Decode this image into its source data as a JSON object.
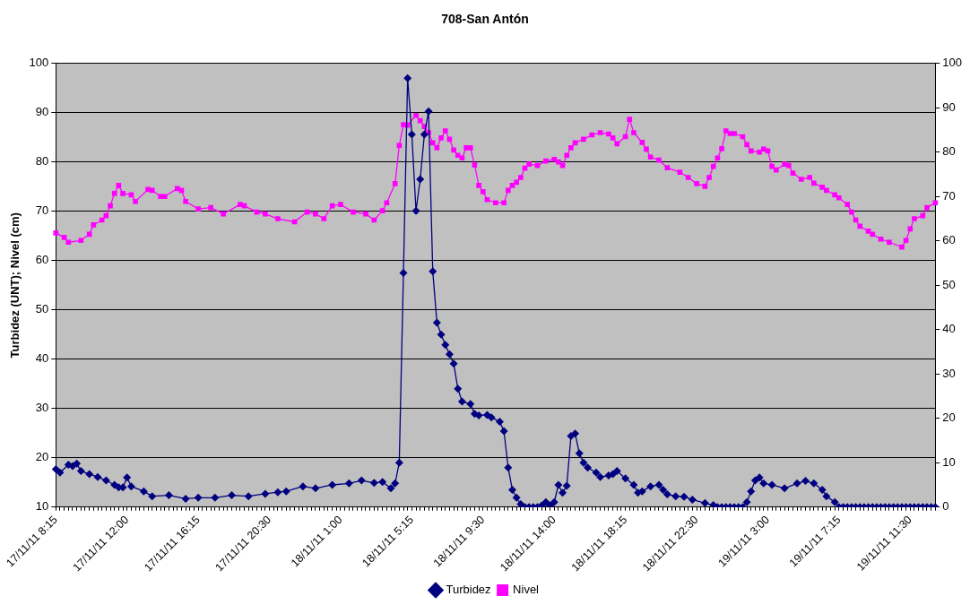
{
  "chart_data": {
    "type": "line",
    "title": "708-San Antón",
    "ylabel": "Turbidez (UNT); Nivel (cm)",
    "categories": [
      "17/11/11 8:15",
      null,
      null,
      null,
      null,
      null,
      null,
      null,
      null,
      null,
      null,
      null,
      null,
      null,
      null,
      null,
      null,
      "17/11/11 12:00",
      null,
      null,
      null,
      null,
      null,
      null,
      null,
      null,
      null,
      null,
      null,
      null,
      null,
      null,
      null,
      null,
      "17/11/11 16:15",
      null,
      null,
      null,
      null,
      null,
      null,
      null,
      null,
      null,
      null,
      null,
      null,
      null,
      null,
      null,
      null,
      "17/11/11 20:30",
      null,
      null,
      null,
      null,
      null,
      null,
      null,
      null,
      null,
      null,
      null,
      null,
      null,
      null,
      null,
      null,
      "18/11/11 1:00",
      null,
      null,
      null,
      null,
      null,
      null,
      null,
      null,
      null,
      null,
      null,
      null,
      null,
      null,
      null,
      null,
      "18/11/11 5:15",
      null,
      null,
      null,
      null,
      null,
      null,
      null,
      null,
      null,
      null,
      null,
      null,
      null,
      null,
      null,
      null,
      "18/11/11 9:30",
      null,
      null,
      null,
      null,
      null,
      null,
      null,
      null,
      null,
      null,
      null,
      null,
      null,
      null,
      null,
      null,
      "18/11/11 14:00",
      null,
      null,
      null,
      null,
      null,
      null,
      null,
      null,
      null,
      null,
      null,
      null,
      null,
      null,
      null,
      null,
      "18/11/11 18:15",
      null,
      null,
      null,
      null,
      null,
      null,
      null,
      null,
      null,
      null,
      null,
      null,
      null,
      null,
      null,
      null,
      "18/11/11 22:30",
      null,
      null,
      null,
      null,
      null,
      null,
      null,
      null,
      null,
      null,
      null,
      null,
      null,
      null,
      null,
      null,
      "19/11/11 3:00",
      null,
      null,
      null,
      null,
      null,
      null,
      null,
      null,
      null,
      null,
      null,
      null,
      null,
      null,
      null,
      null,
      "19/11/11 7:15",
      null,
      null,
      null,
      null,
      null,
      null,
      null,
      null,
      null,
      null,
      null,
      null,
      null,
      null,
      null,
      null,
      "19/11/11 11:30",
      null,
      null,
      null,
      null,
      null,
      null
    ],
    "ylim": [
      10,
      100
    ],
    "yticks": [
      10,
      20,
      30,
      40,
      50,
      60,
      70,
      80,
      90,
      100
    ],
    "y2lim": [
      0,
      100
    ],
    "y2ticks": [
      0,
      10,
      20,
      30,
      40,
      50,
      60,
      70,
      80,
      90,
      100
    ],
    "grid": "y",
    "legend": "bottom",
    "line_style": "solid",
    "series": [
      {
        "name": "Turbidez",
        "color": "#000080",
        "marker": "diamond",
        "values": [
          17.7,
          17.0,
          null,
          18.6,
          18.3,
          18.8,
          17.3,
          null,
          16.7,
          null,
          16.1,
          null,
          15.4,
          null,
          14.5,
          14.0,
          14.0,
          16.0,
          14.2,
          null,
          null,
          13.2,
          null,
          12.2,
          null,
          null,
          null,
          12.4,
          null,
          null,
          null,
          11.7,
          null,
          null,
          11.9,
          null,
          null,
          null,
          11.9,
          null,
          null,
          null,
          12.4,
          null,
          null,
          null,
          12.2,
          null,
          null,
          null,
          12.7,
          null,
          null,
          13.0,
          null,
          13.2,
          null,
          null,
          null,
          14.2,
          null,
          null,
          13.8,
          null,
          null,
          null,
          14.5,
          null,
          null,
          null,
          14.8,
          null,
          null,
          15.4,
          null,
          null,
          14.9,
          null,
          15.1,
          null,
          13.8,
          14.8,
          19.0,
          57.5,
          97.0,
          85.6,
          70.1,
          76.5,
          85.6,
          90.3,
          57.8,
          47.4,
          45.0,
          42.9,
          41.0,
          39.1,
          34.0,
          31.4,
          null,
          30.9,
          28.9,
          28.6,
          null,
          28.7,
          28.2,
          null,
          27.3,
          25.4,
          18.0,
          13.5,
          11.9,
          10.6,
          10,
          10,
          10,
          10,
          10.3,
          11.0,
          10.3,
          11.0,
          14.5,
          12.9,
          14.3,
          24.4,
          24.9,
          20.9,
          19.0,
          18.0,
          null,
          17.0,
          16.1,
          null,
          16.4,
          16.7,
          17.3,
          null,
          15.8,
          null,
          14.5,
          12.9,
          13.2,
          null,
          14.2,
          null,
          14.5,
          13.5,
          12.6,
          null,
          12.2,
          null,
          12.1,
          null,
          11.5,
          null,
          null,
          10.8,
          null,
          10.4,
          10,
          10,
          10,
          10,
          10,
          10,
          10,
          11.0,
          13.2,
          15.4,
          16.0,
          14.8,
          null,
          14.5,
          null,
          null,
          13.8,
          null,
          null,
          14.8,
          null,
          15.3,
          null,
          14.8,
          null,
          13.5,
          12.2,
          null,
          11.0,
          10,
          10,
          10,
          10,
          10,
          10,
          10,
          10,
          10,
          10,
          10,
          10,
          10,
          10,
          10,
          10,
          10,
          10,
          10,
          10,
          10,
          10,
          10,
          10
        ]
      },
      {
        "name": "Nivel",
        "color": "#ff00ff",
        "marker": "square",
        "axis": "y2",
        "values": [
          61.8,
          null,
          60.8,
          59.7,
          null,
          null,
          60.1,
          null,
          61.5,
          63.6,
          null,
          64.7,
          65.7,
          67.9,
          70.7,
          72.5,
          70.7,
          null,
          70.4,
          68.9,
          null,
          null,
          71.6,
          71.4,
          null,
          70.0,
          70.0,
          null,
          null,
          71.8,
          71.4,
          68.9,
          null,
          null,
          67.2,
          null,
          null,
          67.5,
          null,
          null,
          66.1,
          null,
          null,
          null,
          68.2,
          67.9,
          null,
          null,
          66.5,
          null,
          66.1,
          null,
          null,
          65.0,
          null,
          null,
          null,
          64.3,
          null,
          null,
          66.5,
          null,
          66.1,
          null,
          65.0,
          null,
          67.9,
          null,
          68.2,
          null,
          null,
          66.5,
          null,
          null,
          66.1,
          null,
          64.7,
          null,
          66.8,
          68.6,
          null,
          72.9,
          81.5,
          86.2,
          86.1,
          null,
          88.3,
          87.1,
          85.8,
          84.4,
          82.1,
          81.0,
          83.2,
          84.8,
          82.9,
          80.5,
          79.3,
          78.7,
          81.0,
          81.0,
          77.1,
          72.5,
          71.1,
          69.3,
          null,
          68.6,
          null,
          68.6,
          71.4,
          72.5,
          73.2,
          74.3,
          76.4,
          77.3,
          null,
          77.0,
          null,
          78.0,
          null,
          78.4,
          77.8,
          77.0,
          79.3,
          81.0,
          82.1,
          null,
          82.9,
          null,
          83.9,
          null,
          84.4,
          null,
          84.1,
          83.2,
          81.9,
          null,
          83.5,
          87.4,
          84.4,
          null,
          82.2,
          80.7,
          78.9,
          null,
          78.2,
          null,
          76.5,
          null,
          null,
          75.5,
          null,
          74.3,
          null,
          72.9,
          null,
          72.3,
          74.3,
          76.8,
          78.7,
          80.8,
          84.8,
          84.2,
          84.2,
          null,
          83.5,
          81.7,
          80.3,
          null,
          80.0,
          80.7,
          80.3,
          76.8,
          76.0,
          null,
          77.3,
          77.0,
          75.3,
          null,
          73.9,
          null,
          74.3,
          73.0,
          null,
          72.1,
          71.4,
          null,
          70.4,
          69.7,
          null,
          68.2,
          66.5,
          64.7,
          63.3,
          null,
          62.2,
          61.5,
          null,
          60.4,
          null,
          59.7,
          null,
          null,
          58.6,
          60.1,
          62.7,
          65.0,
          null,
          65.7,
          67.5,
          null,
          68.6
        ]
      }
    ]
  }
}
